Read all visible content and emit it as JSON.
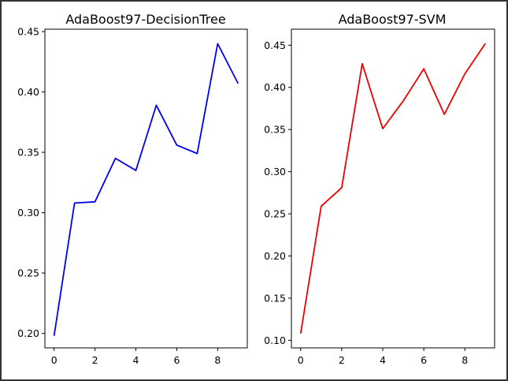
{
  "chart_data": [
    {
      "type": "line",
      "title": "AdaBoost97-DecisionTree",
      "xlabel": "",
      "ylabel": "",
      "x": [
        0,
        1,
        2,
        3,
        4,
        5,
        6,
        7,
        8,
        9
      ],
      "series": [
        {
          "values": [
            0.198,
            0.308,
            0.309,
            0.345,
            0.335,
            0.389,
            0.356,
            0.349,
            0.44,
            0.407
          ],
          "color": "#0000ee"
        }
      ],
      "xlim": [
        -0.45,
        9.45
      ],
      "ylim": [
        0.188,
        0.452
      ],
      "xticks": [
        0,
        2,
        4,
        6,
        8
      ],
      "xtick_labels": [
        "0",
        "2",
        "4",
        "6",
        "8"
      ],
      "yticks": [
        0.2,
        0.25,
        0.3,
        0.35,
        0.4,
        0.45
      ],
      "ytick_labels": [
        "0.20",
        "0.25",
        "0.30",
        "0.35",
        "0.40",
        "0.45"
      ],
      "grid": false,
      "legend": "none"
    },
    {
      "type": "line",
      "title": "AdaBoost97-SVM",
      "xlabel": "",
      "ylabel": "",
      "x": [
        0,
        1,
        2,
        3,
        4,
        5,
        6,
        7,
        8,
        9
      ],
      "series": [
        {
          "values": [
            0.108,
            0.259,
            0.281,
            0.428,
            0.351,
            0.384,
            0.422,
            0.368,
            0.416,
            0.452
          ],
          "color": "#ee0000"
        }
      ],
      "xlim": [
        -0.45,
        9.45
      ],
      "ylim": [
        0.091,
        0.469
      ],
      "xticks": [
        0,
        2,
        4,
        6,
        8
      ],
      "xtick_labels": [
        "0",
        "2",
        "4",
        "6",
        "8"
      ],
      "yticks": [
        0.1,
        0.15,
        0.2,
        0.25,
        0.3,
        0.35,
        0.4,
        0.45
      ],
      "ytick_labels": [
        "0.10",
        "0.15",
        "0.20",
        "0.25",
        "0.30",
        "0.35",
        "0.40",
        "0.45"
      ],
      "grid": false,
      "legend": "none"
    }
  ]
}
